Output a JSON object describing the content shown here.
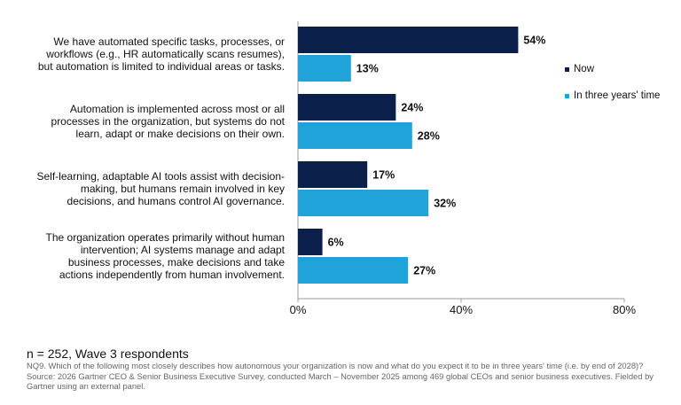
{
  "chart_data": {
    "type": "bar",
    "orientation": "horizontal",
    "categories": [
      "We have automated specific tasks, processes, or workflows (e.g., HR automatically scans resumes), but automation is limited to individual areas or tasks.",
      "Automation is implemented across most or all processes in the organization, but systems do not learn, adapt or make decisions on their own.",
      "Self-learning, adaptable AI tools assist with decision-making, but humans remain involved in key decisions, and humans control AI governance.",
      "The organization operates primarily without human intervention; AI systems manage and adapt business processes, make decisions and take actions independently from human involvement."
    ],
    "category_lines": [
      [
        "We have automated specific tasks, processes, or",
        "workflows (e.g., HR automatically scans resumes),",
        "but automation is limited to individual areas or tasks."
      ],
      [
        "Automation is implemented across most or all",
        "processes in the organization, but systems do not",
        "learn, adapt or make decisions on their own."
      ],
      [
        "Self-learning, adaptable AI tools assist with decision-",
        "making, but humans remain involved in key",
        "decisions, and humans control AI governance."
      ],
      [
        "The organization operates primarily without human",
        "intervention; AI systems manage and adapt",
        "business processes, make decisions and take",
        "actions independently from human involvement."
      ]
    ],
    "series": [
      {
        "name": "Now",
        "values": [
          54,
          24,
          17,
          6
        ],
        "labels": [
          "54%",
          "24%",
          "17%",
          "6%"
        ],
        "color": "#0b1f4b"
      },
      {
        "name": "In three years' time",
        "values": [
          13,
          28,
          32,
          27
        ],
        "labels": [
          "13%",
          "28%",
          "32%",
          "27%"
        ],
        "color": "#1fa3d8"
      }
    ],
    "xlim": [
      0,
      80
    ],
    "xticks": [
      0,
      40,
      80
    ],
    "xtick_labels": [
      "0%",
      "40%",
      "80%"
    ],
    "grid": false,
    "legend_position": "right"
  },
  "footer": {
    "n": "n = 252, Wave 3 respondents",
    "question": "NQ9. Which of the following most closely describes how autonomous your organization is now and what do you expect it to be in three years' time (i.e. by end of 2028)?",
    "source": "Source: 2026 Gartner CEO & Senior Business Executive Survey, conducted March – November 2025 among 469 global CEOs and senior business executives. Fielded by Gartner using an external panel."
  }
}
